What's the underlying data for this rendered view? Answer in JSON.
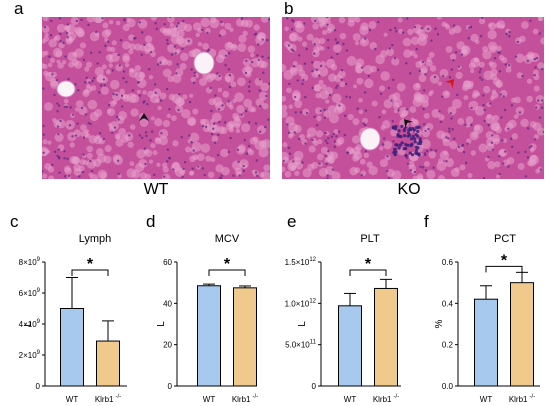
{
  "panels": {
    "a": "a",
    "b": "b",
    "c": "c",
    "d": "d",
    "e": "e",
    "f": "f"
  },
  "histology": {
    "left_label": "WT",
    "right_label": "KO"
  },
  "colors": {
    "wt_bar": "#a8c9ee",
    "ko_bar": "#f0c98c",
    "tissue_base": "#c44f9a",
    "tissue_light": "#e8a3cc",
    "nucleus": "#5b2a86"
  },
  "chart_data": [
    {
      "panel": "c",
      "type": "bar",
      "title": "Lymph",
      "ylabel": "L",
      "categories": [
        "WT",
        "Klrb1"
      ],
      "category_superscripts": [
        "",
        "-/-"
      ],
      "values": [
        5000000000.0,
        2900000000.0
      ],
      "errors": [
        2000000000.0,
        1300000000.0
      ],
      "ylim": [
        0,
        8000000000.0
      ],
      "yticks": [
        0,
        2000000000.0,
        4000000000.0,
        6000000000.0,
        8000000000.0
      ],
      "ytick_labels": [
        {
          "base": "0",
          "exp": ""
        },
        {
          "base": "2×10",
          "exp": "9"
        },
        {
          "base": "4×10",
          "exp": "9"
        },
        {
          "base": "6×10",
          "exp": "9"
        },
        {
          "base": "8×10",
          "exp": "9"
        }
      ],
      "significance": "*"
    },
    {
      "panel": "d",
      "type": "bar",
      "title": "MCV",
      "ylabel": "L",
      "categories": [
        "WT",
        "Klrb1"
      ],
      "category_superscripts": [
        "",
        "-/-"
      ],
      "values": [
        48.5,
        47.5
      ],
      "errors": [
        0.8,
        0.9
      ],
      "ylim": [
        0,
        60
      ],
      "yticks": [
        0,
        20,
        40,
        60
      ],
      "ytick_labels": [
        {
          "base": "0",
          "exp": ""
        },
        {
          "base": "20",
          "exp": ""
        },
        {
          "base": "40",
          "exp": ""
        },
        {
          "base": "60",
          "exp": ""
        }
      ],
      "significance": "*"
    },
    {
      "panel": "e",
      "type": "bar",
      "title": "PLT",
      "ylabel": "L",
      "categories": [
        "WT",
        "Klrb1"
      ],
      "category_superscripts": [
        "",
        "-/-"
      ],
      "values": [
        970000000000.0,
        1180000000000.0
      ],
      "errors": [
        150000000000.0,
        110000000000.0
      ],
      "ylim": [
        0,
        1500000000000.0
      ],
      "yticks": [
        0,
        500000000000.0,
        1000000000000.0,
        1500000000000.0
      ],
      "ytick_labels": [
        {
          "base": "0",
          "exp": ""
        },
        {
          "base": "5.0×10",
          "exp": "11"
        },
        {
          "base": "1.0×10",
          "exp": "12"
        },
        {
          "base": "1.5×10",
          "exp": "12"
        }
      ],
      "significance": "*"
    },
    {
      "panel": "f",
      "type": "bar",
      "title": "PCT",
      "ylabel": "%",
      "categories": [
        "WT",
        "Klrb1"
      ],
      "category_superscripts": [
        "",
        "-/-"
      ],
      "values": [
        0.42,
        0.5
      ],
      "errors": [
        0.065,
        0.05
      ],
      "ylim": [
        0,
        0.6
      ],
      "yticks": [
        0,
        0.2,
        0.4,
        0.6
      ],
      "ytick_labels": [
        {
          "base": "0.0",
          "exp": ""
        },
        {
          "base": "0.2",
          "exp": ""
        },
        {
          "base": "0.4",
          "exp": ""
        },
        {
          "base": "0.6",
          "exp": ""
        }
      ],
      "significance": "*"
    }
  ]
}
